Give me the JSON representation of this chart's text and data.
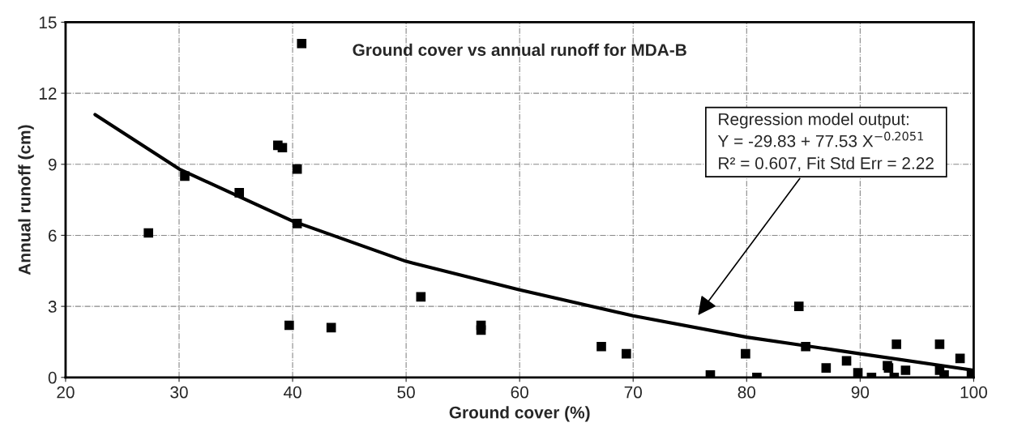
{
  "chart_data": {
    "type": "scatter",
    "title": "Ground cover vs annual runoff for MDA-B",
    "xlabel": "Ground cover (%)",
    "ylabel": "Annual runoff (cm)",
    "xlim": [
      20,
      100
    ],
    "xticks": [
      20,
      30,
      40,
      50,
      60,
      70,
      80,
      90,
      100
    ],
    "ylim": [
      0,
      15
    ],
    "yticks": [
      0,
      3,
      6,
      9,
      12,
      15
    ],
    "grid": true,
    "marker": "square",
    "series": [
      {
        "color": "#000000",
        "x": [
          27.3,
          30.5,
          35.3,
          38.7,
          39.1,
          40.8,
          40.4,
          40.4,
          39.7,
          43.4,
          51.3,
          56.6,
          56.6,
          67.2,
          69.4,
          76.8,
          79.9,
          80.9,
          84.6,
          85.2,
          87.0,
          88.8,
          89.8,
          91.0,
          92.4,
          92.5,
          93.2,
          93.0,
          94.0,
          97.0,
          97.0,
          97.4,
          98.8,
          99.8
        ],
        "values": [
          6.1,
          8.5,
          7.8,
          9.8,
          9.7,
          14.1,
          8.8,
          6.5,
          2.2,
          2.1,
          3.4,
          2.2,
          2.0,
          1.3,
          1.0,
          0.1,
          1.0,
          0.0,
          3.0,
          1.3,
          0.4,
          0.7,
          0.2,
          0.0,
          0.5,
          0.4,
          1.4,
          0.0,
          0.3,
          1.4,
          0.3,
          0.1,
          0.8,
          0.1
        ]
      },
      {
        "type": "line",
        "color": "#000000",
        "marker": "none",
        "x": [
          22.6,
          30,
          40,
          50,
          60,
          70,
          80,
          90,
          100
        ],
        "values": [
          11.1,
          8.8,
          6.6,
          4.9,
          3.7,
          2.6,
          1.7,
          1.0,
          0.3
        ]
      }
    ],
    "annotations": [
      "Regression model output:",
      "Y = -29.83 + 77.53 X$^{−0.2051}$",
      "R² = 0.607, Fit Std Err = 2.22"
    ]
  }
}
